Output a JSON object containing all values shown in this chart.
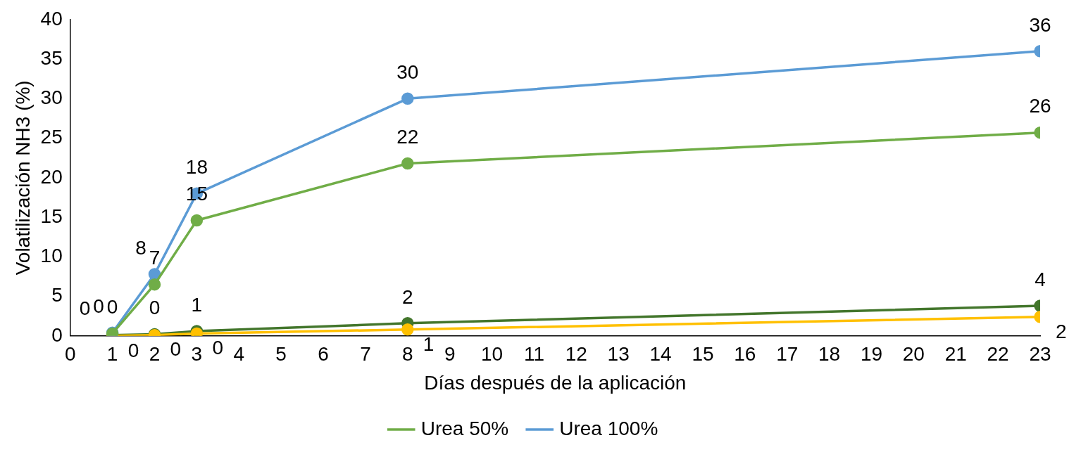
{
  "chart_data": {
    "type": "line",
    "xlabel": "Días después de la aplicación",
    "ylabel": "Volatilización NH3 (%)",
    "x": [
      1,
      2,
      3,
      8,
      23
    ],
    "series": [
      {
        "name": "Urea 50%",
        "color": "#70ad47",
        "values": [
          0.3,
          6.5,
          14.6,
          21.8,
          25.7
        ],
        "value_labels": [
          "0",
          "7",
          "15",
          "22",
          "26"
        ]
      },
      {
        "name": "Urea 100%",
        "color": "#5b9bd5",
        "values": [
          0.4,
          7.8,
          18,
          30,
          36
        ],
        "value_labels": [
          "0",
          "8",
          "18",
          "30",
          "36"
        ]
      },
      {
        "color": "#ffc000",
        "values": [
          0,
          0.1,
          0.3,
          0.8,
          2.4
        ],
        "value_labels": [
          "0",
          "0",
          "0",
          "1",
          "2"
        ]
      },
      {
        "color": "#43762c",
        "values": [
          0.1,
          0.2,
          0.6,
          1.6,
          3.8
        ],
        "value_labels": [
          "0",
          "0",
          "1",
          "2",
          "4"
        ]
      }
    ],
    "xlim": [
      0,
      23
    ],
    "xticks": [
      0,
      1,
      2,
      3,
      4,
      5,
      6,
      7,
      8,
      9,
      10,
      11,
      12,
      13,
      14,
      15,
      16,
      17,
      18,
      19,
      20,
      21,
      22,
      23
    ],
    "ylim": [
      0,
      40
    ],
    "yticks": [
      0,
      5,
      10,
      15,
      20,
      25,
      30,
      35,
      40
    ],
    "grid": false,
    "legend": "bottom",
    "marker": "circle",
    "line_style": "solid"
  }
}
